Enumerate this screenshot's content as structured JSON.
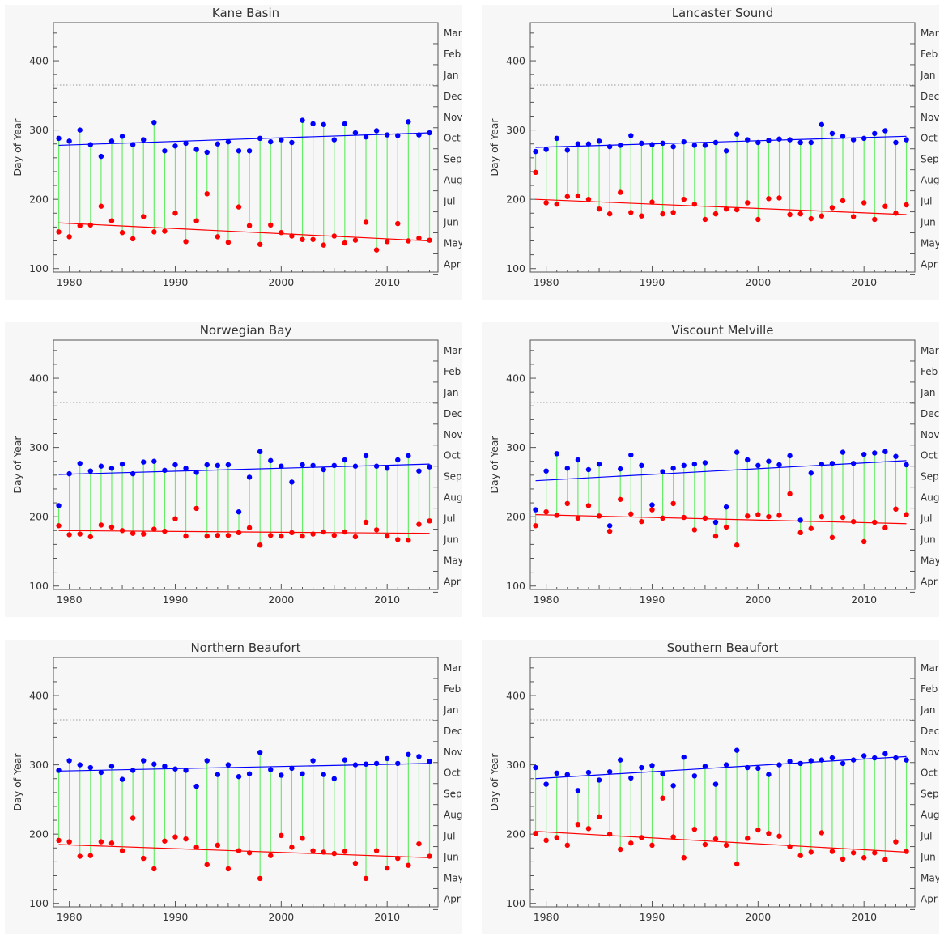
{
  "chart_data": [
    {
      "type": "scatter",
      "title": "Kane Basin",
      "ylabel": "Day of Year",
      "xlim": [
        1978.5,
        2014.8
      ],
      "ylim": [
        95,
        455
      ],
      "x_ticks": [
        1980,
        1990,
        2000,
        2010
      ],
      "y_ticks": [
        100,
        200,
        300,
        400
      ],
      "right_axis_labels": [
        "Apr",
        "May",
        "Jun",
        "Jul",
        "Aug",
        "Sep",
        "Oct",
        "Nov",
        "Dec",
        "Jan",
        "Feb",
        "Mar"
      ],
      "reference_line": 365,
      "colors": {
        "freeze": "#0000ff",
        "breakup": "#ff0000",
        "open_water": "#66ee66",
        "reference": "#999999"
      },
      "years": [
        1979,
        1980,
        1981,
        1982,
        1983,
        1984,
        1985,
        1986,
        1987,
        1988,
        1989,
        1990,
        1991,
        1992,
        1993,
        1994,
        1995,
        1996,
        1997,
        1998,
        1999,
        2000,
        2001,
        2002,
        2003,
        2004,
        2005,
        2006,
        2007,
        2008,
        2009,
        2010,
        2011,
        2012,
        2013,
        2014
      ],
      "series": [
        {
          "key": "freeze",
          "values": [
            288,
            284,
            300,
            279,
            262,
            284,
            291,
            279,
            286,
            311,
            270,
            277,
            281,
            272,
            268,
            280,
            283,
            270,
            270,
            288,
            283,
            286,
            282,
            314,
            309,
            308,
            286,
            309,
            296,
            290,
            299,
            293,
            292,
            312,
            293,
            296
          ]
        },
        {
          "key": "breakup",
          "values": [
            153,
            146,
            162,
            163,
            190,
            169,
            152,
            143,
            175,
            153,
            154,
            180,
            139,
            169,
            208,
            146,
            138,
            189,
            162,
            135,
            163,
            152,
            147,
            142,
            142,
            134,
            147,
            137,
            141,
            167,
            127,
            139,
            165,
            140,
            144,
            141
          ]
        }
      ],
      "trend_freeze": [
        278,
        296
      ],
      "trend_breakup": [
        166,
        140
      ]
    },
    {
      "type": "scatter",
      "title": "Lancaster Sound",
      "ylabel": "Day of Year",
      "xlim": [
        1978.5,
        2014.8
      ],
      "ylim": [
        95,
        455
      ],
      "x_ticks": [
        1980,
        1990,
        2000,
        2010
      ],
      "y_ticks": [
        100,
        200,
        300,
        400
      ],
      "right_axis_labels": [
        "Apr",
        "May",
        "Jun",
        "Jul",
        "Aug",
        "Sep",
        "Oct",
        "Nov",
        "Dec",
        "Jan",
        "Feb",
        "Mar"
      ],
      "reference_line": 365,
      "colors": {
        "freeze": "#0000ff",
        "breakup": "#ff0000",
        "open_water": "#66ee66",
        "reference": "#999999"
      },
      "years": [
        1979,
        1980,
        1981,
        1982,
        1983,
        1984,
        1985,
        1986,
        1987,
        1988,
        1989,
        1990,
        1991,
        1992,
        1993,
        1994,
        1995,
        1996,
        1997,
        1998,
        1999,
        2000,
        2001,
        2002,
        2003,
        2004,
        2005,
        2006,
        2007,
        2008,
        2009,
        2010,
        2011,
        2012,
        2013,
        2014
      ],
      "series": [
        {
          "key": "freeze",
          "values": [
            269,
            272,
            288,
            271,
            280,
            280,
            284,
            276,
            278,
            292,
            281,
            279,
            281,
            276,
            283,
            278,
            278,
            282,
            270,
            294,
            286,
            282,
            285,
            287,
            286,
            282,
            282,
            308,
            295,
            291,
            286,
            288,
            295,
            299,
            282,
            286
          ]
        },
        {
          "key": "breakup",
          "values": [
            239,
            195,
            193,
            204,
            205,
            200,
            186,
            179,
            210,
            181,
            176,
            196,
            179,
            181,
            200,
            193,
            171,
            179,
            186,
            185,
            195,
            171,
            201,
            202,
            178,
            179,
            172,
            176,
            188,
            198,
            175,
            195,
            171,
            190,
            180,
            192
          ]
        }
      ],
      "trend_freeze": [
        275,
        291
      ],
      "trend_breakup": [
        200,
        178
      ]
    },
    {
      "type": "scatter",
      "title": "Norwegian Bay",
      "ylabel": "Day of Year",
      "xlim": [
        1978.5,
        2014.8
      ],
      "ylim": [
        95,
        455
      ],
      "x_ticks": [
        1980,
        1990,
        2000,
        2010
      ],
      "y_ticks": [
        100,
        200,
        300,
        400
      ],
      "right_axis_labels": [
        "Apr",
        "May",
        "Jun",
        "Jul",
        "Aug",
        "Sep",
        "Oct",
        "Nov",
        "Dec",
        "Jan",
        "Feb",
        "Mar"
      ],
      "reference_line": 365,
      "colors": {
        "freeze": "#0000ff",
        "breakup": "#ff0000",
        "open_water": "#66ee66",
        "reference": "#999999"
      },
      "years": [
        1979,
        1980,
        1981,
        1982,
        1983,
        1984,
        1985,
        1986,
        1987,
        1988,
        1989,
        1990,
        1991,
        1992,
        1993,
        1994,
        1995,
        1996,
        1997,
        1998,
        1999,
        2000,
        2001,
        2002,
        2003,
        2004,
        2005,
        2006,
        2007,
        2008,
        2009,
        2010,
        2011,
        2012,
        2013,
        2014
      ],
      "series": [
        {
          "key": "freeze",
          "values": [
            216,
            262,
            277,
            266,
            273,
            270,
            276,
            262,
            279,
            280,
            267,
            275,
            270,
            264,
            275,
            274,
            275,
            207,
            257,
            294,
            281,
            273,
            250,
            275,
            274,
            268,
            274,
            282,
            273,
            288,
            273,
            270,
            282,
            288,
            266,
            272
          ]
        },
        {
          "key": "breakup",
          "values": [
            187,
            174,
            175,
            171,
            188,
            185,
            180,
            176,
            175,
            182,
            179,
            197,
            172,
            212,
            172,
            173,
            173,
            177,
            184,
            159,
            173,
            172,
            177,
            172,
            175,
            178,
            173,
            178,
            171,
            192,
            181,
            172,
            167,
            166,
            189,
            194
          ]
        }
      ],
      "trend_freeze": [
        261,
        276
      ],
      "trend_breakup": [
        180,
        176
      ]
    },
    {
      "type": "scatter",
      "title": "Viscount Melville",
      "ylabel": "Day of Year",
      "xlim": [
        1978.5,
        2014.8
      ],
      "ylim": [
        95,
        455
      ],
      "x_ticks": [
        1980,
        1990,
        2000,
        2010
      ],
      "y_ticks": [
        100,
        200,
        300,
        400
      ],
      "right_axis_labels": [
        "Apr",
        "May",
        "Jun",
        "Jul",
        "Aug",
        "Sep",
        "Oct",
        "Nov",
        "Dec",
        "Jan",
        "Feb",
        "Mar"
      ],
      "reference_line": 365,
      "colors": {
        "freeze": "#0000ff",
        "breakup": "#ff0000",
        "open_water": "#66ee66",
        "reference": "#999999"
      },
      "years": [
        1979,
        1980,
        1981,
        1982,
        1983,
        1984,
        1985,
        1986,
        1987,
        1988,
        1989,
        1990,
        1991,
        1992,
        1993,
        1994,
        1995,
        1996,
        1997,
        1998,
        1999,
        2000,
        2001,
        2002,
        2003,
        2004,
        2005,
        2006,
        2007,
        2008,
        2009,
        2010,
        2011,
        2012,
        2013,
        2014
      ],
      "series": [
        {
          "key": "freeze",
          "values": [
            210,
            266,
            291,
            270,
            282,
            268,
            276,
            187,
            269,
            289,
            274,
            217,
            265,
            270,
            274,
            276,
            278,
            192,
            214,
            293,
            282,
            274,
            280,
            275,
            288,
            195,
            263,
            276,
            277,
            293,
            277,
            290,
            292,
            294,
            287,
            275
          ]
        },
        {
          "key": "breakup",
          "values": [
            187,
            207,
            202,
            219,
            198,
            216,
            201,
            179,
            225,
            204,
            193,
            210,
            198,
            219,
            199,
            181,
            198,
            172,
            185,
            159,
            201,
            203,
            200,
            202,
            233,
            177,
            183,
            200,
            170,
            199,
            193,
            164,
            192,
            184,
            211,
            203
          ]
        }
      ],
      "trend_freeze": [
        252,
        281
      ],
      "trend_breakup": [
        203,
        190
      ]
    },
    {
      "type": "scatter",
      "title": "Northern Beaufort",
      "ylabel": "Day of Year",
      "xlim": [
        1978.5,
        2014.8
      ],
      "ylim": [
        95,
        455
      ],
      "x_ticks": [
        1980,
        1990,
        2000,
        2010
      ],
      "y_ticks": [
        100,
        200,
        300,
        400
      ],
      "right_axis_labels": [
        "Apr",
        "May",
        "Jun",
        "Jul",
        "Aug",
        "Sep",
        "Oct",
        "Nov",
        "Dec",
        "Jan",
        "Feb",
        "Mar"
      ],
      "reference_line": 365,
      "colors": {
        "freeze": "#0000ff",
        "breakup": "#ff0000",
        "open_water": "#66ee66",
        "reference": "#999999"
      },
      "years": [
        1979,
        1980,
        1981,
        1982,
        1983,
        1984,
        1985,
        1986,
        1987,
        1988,
        1989,
        1990,
        1991,
        1992,
        1993,
        1994,
        1995,
        1996,
        1997,
        1998,
        1999,
        2000,
        2001,
        2002,
        2003,
        2004,
        2005,
        2006,
        2007,
        2008,
        2009,
        2010,
        2011,
        2012,
        2013,
        2014
      ],
      "series": [
        {
          "key": "freeze",
          "values": [
            292,
            306,
            300,
            296,
            289,
            298,
            279,
            292,
            306,
            301,
            298,
            294,
            292,
            269,
            306,
            286,
            300,
            283,
            287,
            318,
            293,
            285,
            295,
            287,
            306,
            286,
            280,
            307,
            300,
            301,
            302,
            309,
            302,
            315,
            312,
            305
          ]
        },
        {
          "key": "breakup",
          "values": [
            191,
            189,
            168,
            169,
            189,
            187,
            176,
            223,
            165,
            150,
            190,
            196,
            193,
            181,
            156,
            184,
            150,
            176,
            173,
            136,
            169,
            198,
            181,
            194,
            176,
            174,
            172,
            175,
            158,
            136,
            176,
            151,
            165,
            155,
            186,
            168
          ]
        }
      ],
      "trend_freeze": [
        291,
        302
      ],
      "trend_breakup": [
        185,
        166
      ]
    },
    {
      "type": "scatter",
      "title": "Southern Beaufort",
      "ylabel": "Day of Year",
      "xlim": [
        1978.5,
        2014.8
      ],
      "ylim": [
        95,
        455
      ],
      "x_ticks": [
        1980,
        1990,
        2000,
        2010
      ],
      "y_ticks": [
        100,
        200,
        300,
        400
      ],
      "right_axis_labels": [
        "Apr",
        "May",
        "Jun",
        "Jul",
        "Aug",
        "Sep",
        "Oct",
        "Nov",
        "Dec",
        "Jan",
        "Feb",
        "Mar"
      ],
      "reference_line": 365,
      "colors": {
        "freeze": "#0000ff",
        "breakup": "#ff0000",
        "open_water": "#66ee66",
        "reference": "#999999"
      },
      "years": [
        1979,
        1980,
        1981,
        1982,
        1983,
        1984,
        1985,
        1986,
        1987,
        1988,
        1989,
        1990,
        1991,
        1992,
        1993,
        1994,
        1995,
        1996,
        1997,
        1998,
        1999,
        2000,
        2001,
        2002,
        2003,
        2004,
        2005,
        2006,
        2007,
        2008,
        2009,
        2010,
        2011,
        2012,
        2013,
        2014
      ],
      "series": [
        {
          "key": "freeze",
          "values": [
            296,
            272,
            288,
            286,
            263,
            289,
            278,
            290,
            307,
            281,
            296,
            299,
            287,
            270,
            311,
            284,
            298,
            272,
            300,
            321,
            296,
            295,
            286,
            300,
            305,
            302,
            306,
            307,
            310,
            302,
            307,
            313,
            310,
            316,
            310,
            307
          ]
        },
        {
          "key": "breakup",
          "values": [
            201,
            191,
            195,
            184,
            214,
            208,
            225,
            200,
            178,
            187,
            195,
            184,
            252,
            196,
            166,
            207,
            185,
            193,
            184,
            157,
            194,
            206,
            201,
            197,
            182,
            169,
            174,
            202,
            175,
            164,
            173,
            166,
            173,
            163,
            189,
            175
          ]
        }
      ],
      "trend_freeze": [
        280,
        312
      ],
      "trend_breakup": [
        204,
        174
      ]
    }
  ]
}
